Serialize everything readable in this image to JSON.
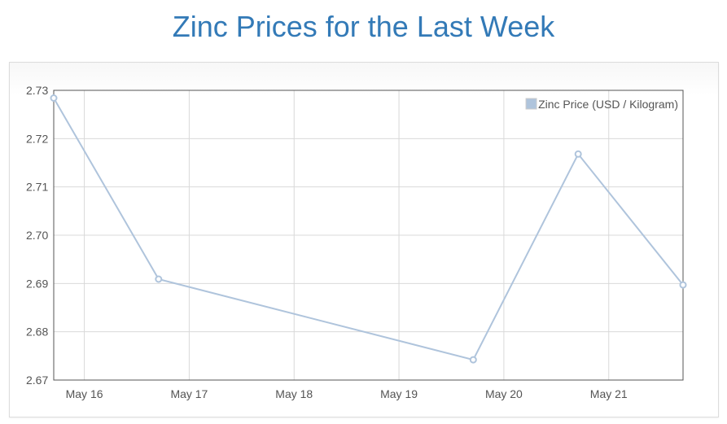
{
  "page": {
    "title": "Zinc Prices for the Last Week"
  },
  "colors": {
    "title": "#337ab7",
    "series": "#afc4dc",
    "grid": "#d9d9d9",
    "axis": "#545454"
  },
  "chart_data": {
    "type": "line",
    "title": "",
    "xlabel": "",
    "ylabel": "",
    "grid": true,
    "legend_position": "top-right",
    "x_ticks": [
      "May 16",
      "May 17",
      "May 18",
      "May 19",
      "May 20",
      "May 21"
    ],
    "y_ticks": [
      "2.67",
      "2.68",
      "2.69",
      "2.70",
      "2.71",
      "2.72",
      "2.73"
    ],
    "xlim": [
      "May 15 17:00",
      "May 21 17:00"
    ],
    "ylim": [
      2.67,
      2.73
    ],
    "series": [
      {
        "name": "Zinc Price (USD / Kilogram)",
        "x": [
          "May 15 17:00",
          "May 16 17:00",
          "May 19 17:00",
          "May 20 17:00",
          "May 21 17:00"
        ],
        "y": [
          2.7284,
          2.6909,
          2.6742,
          2.7168,
          2.6897
        ]
      }
    ]
  }
}
